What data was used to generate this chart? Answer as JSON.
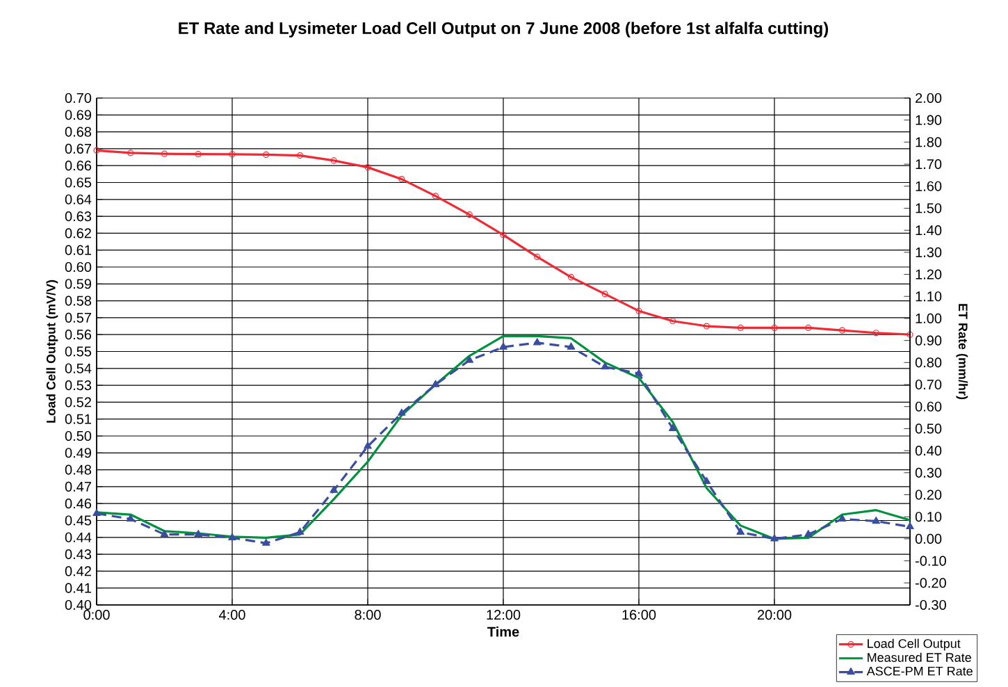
{
  "chart_data": {
    "type": "line",
    "title": "ET Rate and Lysimeter Load Cell Output on 7 June 2008 (before 1st alfalfa  cutting)",
    "xlabel": "Time",
    "ylabel": "Load Cell Output (mV/V)",
    "y2label": "ET Rate (mm/hr)",
    "x": [
      0,
      1,
      2,
      3,
      4,
      5,
      6,
      7,
      8,
      9,
      10,
      11,
      12,
      13,
      14,
      15,
      16,
      17,
      18,
      19,
      20,
      21,
      22,
      23,
      24
    ],
    "series": [
      {
        "name": "Load Cell Output",
        "color": "#ee2a35",
        "marker": "circle",
        "line_style": "solid",
        "values": [
          0.669,
          0.6675,
          0.667,
          0.6668,
          0.6667,
          0.6665,
          0.666,
          0.663,
          0.659,
          0.652,
          0.642,
          0.631,
          0.619,
          0.606,
          0.594,
          0.584,
          0.574,
          0.568,
          0.565,
          0.564,
          0.564,
          0.564,
          0.5625,
          0.561,
          0.56
        ]
      },
      {
        "name": "Measured ET Rate",
        "color": "#00923f",
        "marker": "none",
        "line_style": "solid",
        "axis": "y2",
        "values": [
          0.12,
          0.11,
          0.035,
          0.025,
          0.01,
          0.005,
          0.02,
          0.18,
          0.35,
          0.56,
          0.7,
          0.83,
          0.92,
          0.92,
          0.91,
          0.8,
          0.73,
          0.53,
          0.23,
          0.06,
          0.0,
          0.005,
          0.11,
          0.13,
          0.085
        ]
      },
      {
        "name": "ASCE-PM ET Rate",
        "color": "#3a4ea0",
        "marker": "triangle",
        "line_style": "dashed",
        "axis": "y2",
        "values": [
          0.115,
          0.09,
          0.02,
          0.02,
          0.005,
          -0.02,
          0.03,
          0.22,
          0.42,
          0.57,
          0.7,
          0.81,
          0.87,
          0.89,
          0.87,
          0.78,
          0.75,
          0.5,
          0.26,
          0.03,
          0.0,
          0.02,
          0.09,
          0.08,
          0.055
        ]
      }
    ],
    "xlim": [
      0,
      24
    ],
    "xticks": [
      {
        "value": 0,
        "label": "0:00"
      },
      {
        "value": 4,
        "label": "4:00"
      },
      {
        "value": 8,
        "label": "8:00"
      },
      {
        "value": 12,
        "label": "12:00"
      },
      {
        "value": 16,
        "label": "16:00"
      },
      {
        "value": 20,
        "label": "20:00"
      },
      {
        "value": 24,
        "label": null
      }
    ],
    "ylim": [
      0.4,
      0.7
    ],
    "yticks": [
      {
        "value": 0.4,
        "label": "0.40"
      },
      {
        "value": 0.41,
        "label": "0.41"
      },
      {
        "value": 0.42,
        "label": "0.42"
      },
      {
        "value": 0.43,
        "label": "0.43"
      },
      {
        "value": 0.44,
        "label": "0.44"
      },
      {
        "value": 0.45,
        "label": "0.45"
      },
      {
        "value": 0.46,
        "label": "0.46"
      },
      {
        "value": 0.47,
        "label": "0.47"
      },
      {
        "value": 0.48,
        "label": "0.48"
      },
      {
        "value": 0.49,
        "label": "0.49"
      },
      {
        "value": 0.5,
        "label": "0.50"
      },
      {
        "value": 0.51,
        "label": "0.51"
      },
      {
        "value": 0.52,
        "label": "0.52"
      },
      {
        "value": 0.53,
        "label": "0.53"
      },
      {
        "value": 0.54,
        "label": "0.54"
      },
      {
        "value": 0.55,
        "label": "0.55"
      },
      {
        "value": 0.56,
        "label": "0.56"
      },
      {
        "value": 0.57,
        "label": "0.57"
      },
      {
        "value": 0.58,
        "label": "0.58"
      },
      {
        "value": 0.59,
        "label": "0.59"
      },
      {
        "value": 0.6,
        "label": "0.60"
      },
      {
        "value": 0.61,
        "label": "0.61"
      },
      {
        "value": 0.62,
        "label": "0.62"
      },
      {
        "value": 0.63,
        "label": "0.63"
      },
      {
        "value": 0.64,
        "label": "0.64"
      },
      {
        "value": 0.65,
        "label": "0.65"
      },
      {
        "value": 0.66,
        "label": "0.66"
      },
      {
        "value": 0.67,
        "label": "0.67"
      },
      {
        "value": 0.68,
        "label": "0.68"
      },
      {
        "value": 0.69,
        "label": "0.69"
      },
      {
        "value": 0.7,
        "label": "0.70"
      }
    ],
    "y2lim": [
      -0.3,
      2.0
    ],
    "y2ticks": [
      {
        "value": -0.3,
        "label": "-0.30"
      },
      {
        "value": -0.2,
        "label": "-0.20"
      },
      {
        "value": -0.1,
        "label": "-0.10"
      },
      {
        "value": 0,
        "label": "0.00"
      },
      {
        "value": 0.1,
        "label": "0.10"
      },
      {
        "value": 0.2,
        "label": "0.20"
      },
      {
        "value": 0.3,
        "label": "0.30"
      },
      {
        "value": 0.4,
        "label": "0.40"
      },
      {
        "value": 0.5,
        "label": "0.50"
      },
      {
        "value": 0.6,
        "label": "0.60"
      },
      {
        "value": 0.7,
        "label": "0.70"
      },
      {
        "value": 0.8,
        "label": "0.80"
      },
      {
        "value": 0.9,
        "label": "0.90"
      },
      {
        "value": 1.0,
        "label": "1.00"
      },
      {
        "value": 1.1,
        "label": "1.10"
      },
      {
        "value": 1.2,
        "label": "1.20"
      },
      {
        "value": 1.3,
        "label": "1.30"
      },
      {
        "value": 1.4,
        "label": "1.40"
      },
      {
        "value": 1.5,
        "label": "1.50"
      },
      {
        "value": 1.6,
        "label": "1.60"
      },
      {
        "value": 1.7,
        "label": "1.70"
      },
      {
        "value": 1.8,
        "label": "1.80"
      },
      {
        "value": 1.9,
        "label": "1.90"
      },
      {
        "value": 2.0,
        "label": "2.00"
      }
    ],
    "grid": true,
    "legend": "bottom right"
  }
}
